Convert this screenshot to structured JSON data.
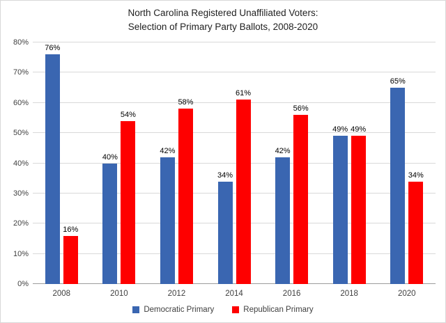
{
  "title": {
    "line1": "North Carolina Registered Unaffiliated Voters:",
    "line2": "Selection of Primary Party Ballots, 2008-2020"
  },
  "chart_data": {
    "type": "bar",
    "title": "North Carolina Registered Unaffiliated Voters: Selection of Primary Party Ballots, 2008-2020",
    "categories": [
      "2008",
      "2010",
      "2012",
      "2014",
      "2016",
      "2018",
      "2020"
    ],
    "series": [
      {
        "name": "Democratic Primary",
        "color": "#3a66b1",
        "values": [
          76,
          40,
          42,
          34,
          42,
          49,
          65
        ]
      },
      {
        "name": "Republican Primary",
        "color": "#fe0000",
        "values": [
          16,
          54,
          58,
          61,
          56,
          49,
          34
        ]
      }
    ],
    "ylim": [
      0,
      80
    ],
    "ytick_step": 10,
    "ytick_suffix": "%",
    "value_label_suffix": "%",
    "grid": true,
    "legend_position": "bottom"
  },
  "colors": {
    "gridline": "#d9d9d9",
    "axis_line": "#9b9b9b",
    "axis_text": "#404040",
    "label_text": "#000000"
  }
}
